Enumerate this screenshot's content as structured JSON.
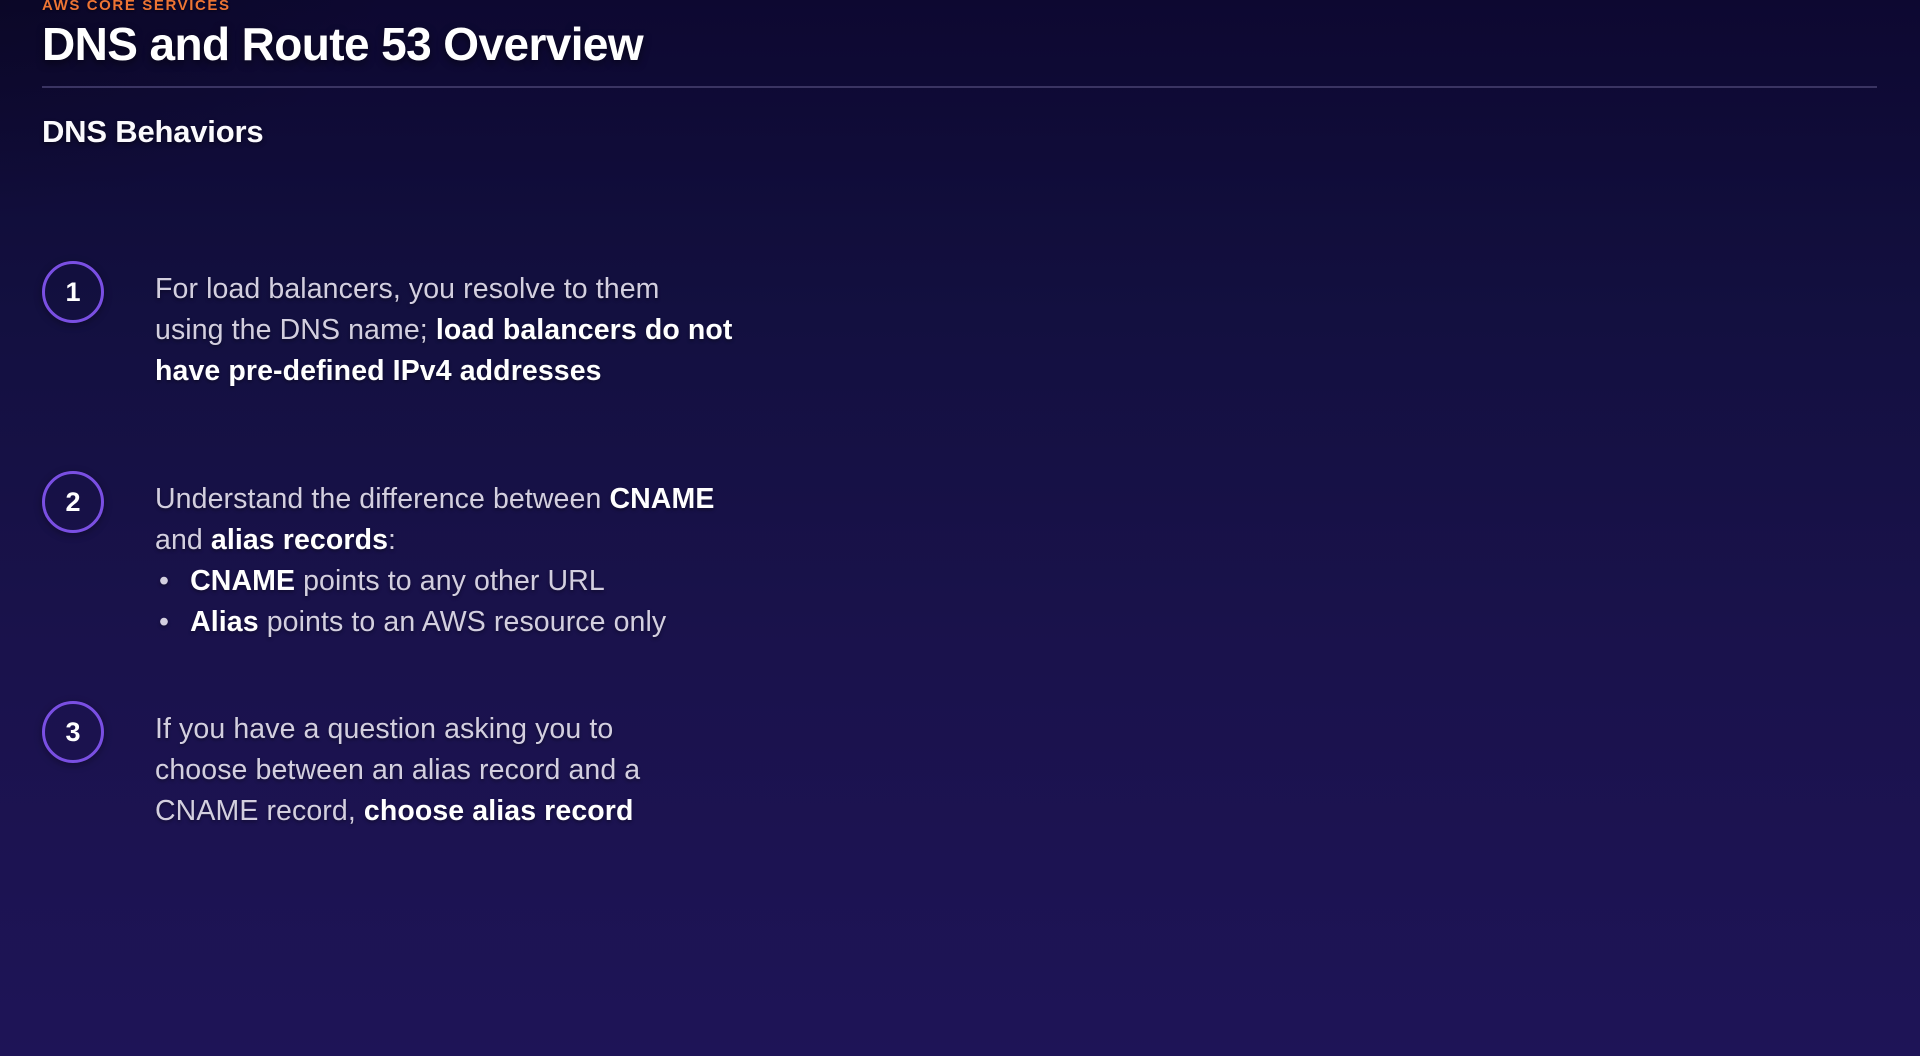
{
  "header": {
    "eyebrow": "AWS CORE SERVICES",
    "title": "DNS and Route 53 Overview",
    "section_heading": "DNS Behaviors"
  },
  "colors": {
    "background_top": "#0d0831",
    "background_bottom": "#1e1457",
    "eyebrow_orange": "#ee7434",
    "divider": "#3a3462",
    "circle_border_purple": "#7a4fe3",
    "body_text": "#d3cfdf",
    "bold_text": "#ffffff"
  },
  "items": [
    {
      "number": "1",
      "lines": [
        {
          "bullet": false,
          "segments": [
            {
              "t": "For load balancers, you resolve to them",
              "b": false
            }
          ]
        },
        {
          "bullet": false,
          "segments": [
            {
              "t": "using the DNS name; ",
              "b": false
            },
            {
              "t": "load balancers do not",
              "b": true
            }
          ]
        },
        {
          "bullet": false,
          "segments": [
            {
              "t": "have pre-defined IPv4 addresses",
              "b": true
            }
          ]
        }
      ]
    },
    {
      "number": "2",
      "lines": [
        {
          "bullet": false,
          "segments": [
            {
              "t": "Understand the difference between ",
              "b": false
            },
            {
              "t": "CNAME",
              "b": true
            }
          ]
        },
        {
          "bullet": false,
          "segments": [
            {
              "t": "and ",
              "b": false
            },
            {
              "t": "alias records",
              "b": true
            },
            {
              "t": ":",
              "b": false
            }
          ]
        },
        {
          "bullet": true,
          "segments": [
            {
              "t": "CNAME",
              "b": true
            },
            {
              "t": " points to any other URL",
              "b": false
            }
          ]
        },
        {
          "bullet": true,
          "segments": [
            {
              "t": "Alias",
              "b": true
            },
            {
              "t": " points to an AWS resource only",
              "b": false
            }
          ]
        }
      ]
    },
    {
      "number": "3",
      "lines": [
        {
          "bullet": false,
          "segments": [
            {
              "t": "If you have a question asking you to",
              "b": false
            }
          ]
        },
        {
          "bullet": false,
          "segments": [
            {
              "t": "choose between an alias record and a",
              "b": false
            }
          ]
        },
        {
          "bullet": false,
          "segments": [
            {
              "t": "CNAME record, ",
              "b": false
            },
            {
              "t": "choose alias record",
              "b": true
            }
          ]
        }
      ]
    }
  ],
  "glyphs": {
    "bullet": "•"
  }
}
